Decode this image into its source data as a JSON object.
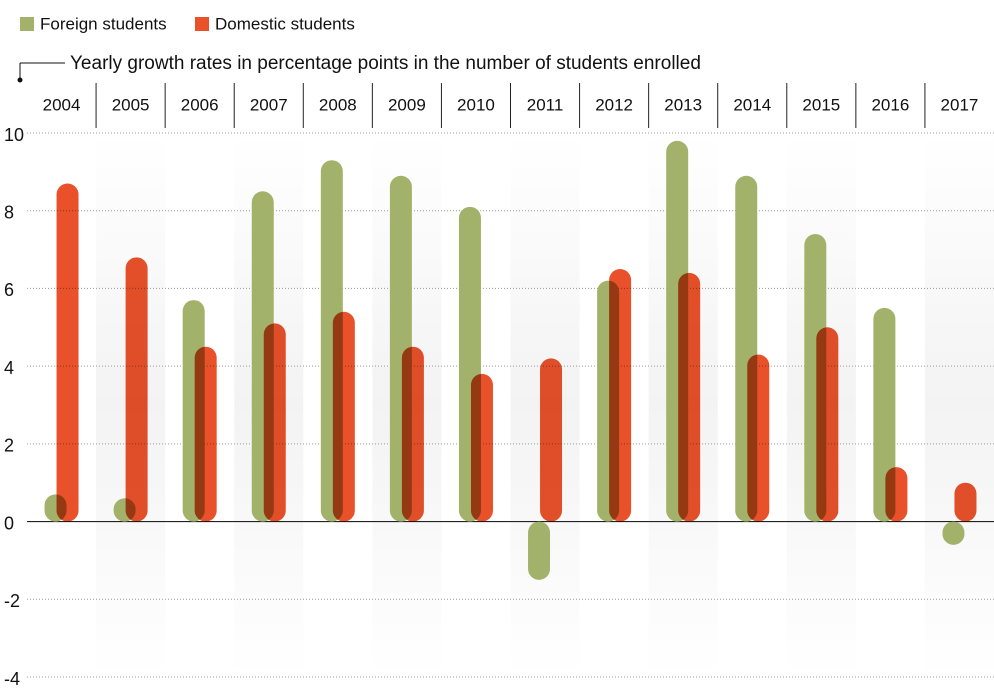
{
  "chart_data": {
    "type": "bar",
    "title": "Yearly growth rates in percentage points in the number of students enrolled",
    "categories": [
      "2004",
      "2005",
      "2006",
      "2007",
      "2008",
      "2009",
      "2010",
      "2011",
      "2012",
      "2013",
      "2014",
      "2015",
      "2016",
      "2017"
    ],
    "series": [
      {
        "name": "Foreign students",
        "color": "#a3b26a",
        "values": [
          0.7,
          0.6,
          5.7,
          8.5,
          9.3,
          8.9,
          8.1,
          -1.5,
          6.2,
          9.8,
          8.9,
          7.4,
          5.5,
          -0.6
        ]
      },
      {
        "name": "Domestic students",
        "color": "#e8512a",
        "values": [
          8.7,
          6.8,
          4.5,
          5.1,
          5.4,
          4.5,
          3.8,
          4.2,
          6.5,
          6.4,
          4.3,
          5.0,
          1.4,
          1.0
        ]
      }
    ],
    "ylim": [
      -4,
      10
    ],
    "yticks": [
      10,
      8,
      6,
      4,
      2,
      0,
      -2,
      -4
    ],
    "grid": true
  }
}
